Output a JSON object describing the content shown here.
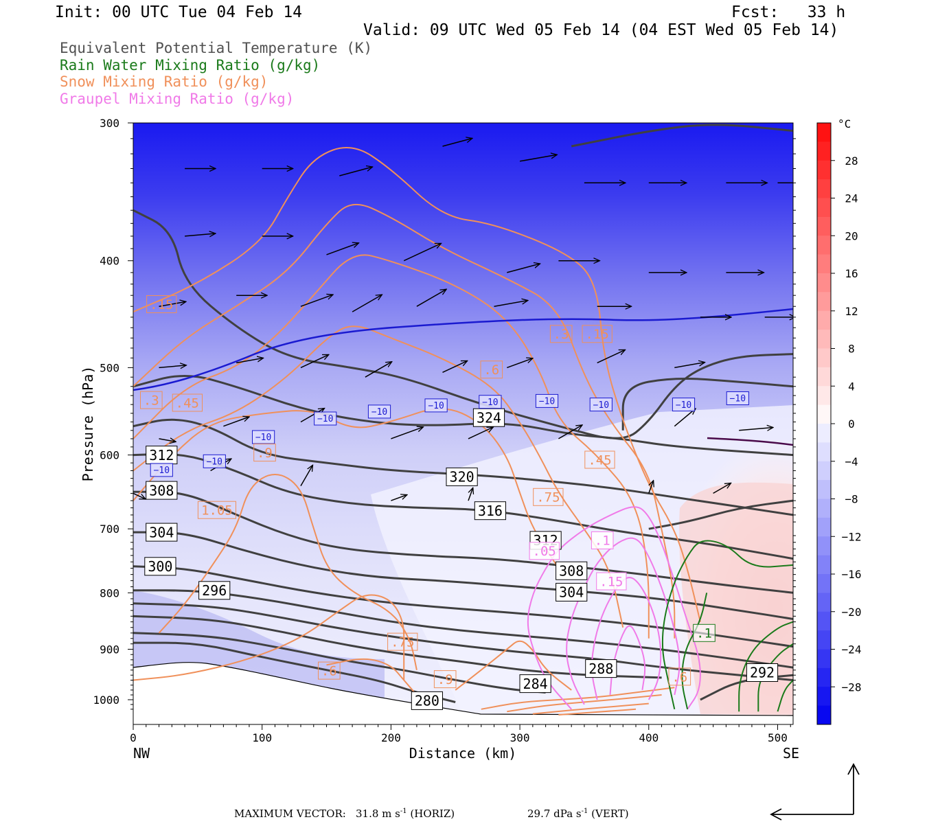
{
  "header": {
    "init": "Init: 00 UTC Tue 04 Feb 14",
    "fcst": "Fcst:   33 h",
    "valid": "Valid: 09 UTC Wed 05 Feb 14 (04 EST Wed 05 Feb 14)"
  },
  "legend": [
    {
      "text": "Equivalent Potential Temperature (K)",
      "color": "#505050"
    },
    {
      "text": "Rain Water Mixing Ratio (g/kg)",
      "color": "#1a7a1a"
    },
    {
      "text": "Snow Mixing Ratio (g/kg)",
      "color": "#f0905a"
    },
    {
      "text": "Graupel Mixing Ratio (g/kg)",
      "color": "#f07ae8"
    }
  ],
  "footer": {
    "label": "MAXIMUM VECTOR:",
    "horiz": "31.8 m s",
    "horiz_unit": "(HORIZ)",
    "vert": "29.7 dPa s",
    "vert_unit": "(VERT)",
    "exp": "-1"
  },
  "chart_data": {
    "type": "cross-section",
    "xlabel": "Distance (km)",
    "ylabel": "Pressure (hPa)",
    "x_endpoints": {
      "left": "NW",
      "right": "SE"
    },
    "xlim": [
      0,
      512
    ],
    "ylim": [
      300,
      1030
    ],
    "xticks": [
      0,
      100,
      200,
      300,
      400,
      500
    ],
    "yticks": [
      300,
      400,
      500,
      600,
      700,
      800,
      900,
      1000
    ],
    "colorbar": {
      "unit": "°C",
      "ticks": [
        28,
        24,
        20,
        16,
        12,
        8,
        4,
        0,
        -4,
        -8,
        -12,
        -16,
        -20,
        -24,
        -28
      ],
      "range": [
        -32,
        32
      ]
    },
    "theta_e": {
      "labels": [
        {
          "text": "324",
          "x": 276,
          "p": 555
        },
        {
          "text": "320",
          "x": 255,
          "p": 628
        },
        {
          "text": "316",
          "x": 277,
          "p": 674
        },
        {
          "text": "312",
          "x": 22,
          "p": 600
        },
        {
          "text": "308",
          "x": 22,
          "p": 646
        },
        {
          "text": "304",
          "x": 22,
          "p": 705
        },
        {
          "text": "300",
          "x": 21,
          "p": 757
        },
        {
          "text": "296",
          "x": 63,
          "p": 796
        },
        {
          "text": "312",
          "x": 320,
          "p": 717
        },
        {
          "text": "308",
          "x": 340,
          "p": 764
        },
        {
          "text": "304",
          "x": 340,
          "p": 799
        },
        {
          "text": "288",
          "x": 363,
          "p": 937
        },
        {
          "text": "284",
          "x": 312,
          "p": 967
        },
        {
          "text": "280",
          "x": 228,
          "p": 1002
        },
        {
          "text": "292",
          "x": 488,
          "p": 945
        }
      ]
    },
    "temperature_labels": [
      {
        "text": "-10",
        "x": 22,
        "p": 619
      },
      {
        "text": "-10",
        "x": 63,
        "p": 608
      },
      {
        "text": "-10",
        "x": 101,
        "p": 578
      },
      {
        "text": "-10",
        "x": 149,
        "p": 556
      },
      {
        "text": "-10",
        "x": 191,
        "p": 548
      },
      {
        "text": "-10",
        "x": 235,
        "p": 541
      },
      {
        "text": "-10",
        "x": 277,
        "p": 537
      },
      {
        "text": "-10",
        "x": 321,
        "p": 536
      },
      {
        "text": "-10",
        "x": 363,
        "p": 540
      },
      {
        "text": "-10",
        "x": 427,
        "p": 540
      },
      {
        "text": "-10",
        "x": 469,
        "p": 533
      }
    ],
    "snow_labels": [
      {
        "text": ".15",
        "x": 22,
        "p": 438
      },
      {
        "text": ".3",
        "x": 14,
        "p": 535
      },
      {
        "text": ".45",
        "x": 42,
        "p": 538
      },
      {
        "text": ".9",
        "x": 102,
        "p": 597
      },
      {
        "text": "1.05",
        "x": 65,
        "p": 673
      },
      {
        "text": ".6",
        "x": 278,
        "p": 502
      },
      {
        "text": ".3",
        "x": 332,
        "p": 466
      },
      {
        "text": ".15",
        "x": 360,
        "p": 466
      },
      {
        "text": ".45",
        "x": 362,
        "p": 606
      },
      {
        "text": ".75",
        "x": 322,
        "p": 655
      },
      {
        "text": ".75",
        "x": 209,
        "p": 886
      },
      {
        "text": ".6",
        "x": 152,
        "p": 941
      },
      {
        "text": ".9",
        "x": 242,
        "p": 958
      },
      {
        "text": ".6",
        "x": 424,
        "p": 953
      }
    ],
    "graupel_labels": [
      {
        "text": ".1",
        "x": 364,
        "p": 717
      },
      {
        "text": ".05",
        "x": 319,
        "p": 733
      },
      {
        "text": ".15",
        "x": 371,
        "p": 781
      }
    ],
    "rain_labels": [
      {
        "text": ".1",
        "x": 443,
        "p": 870
      }
    ]
  }
}
